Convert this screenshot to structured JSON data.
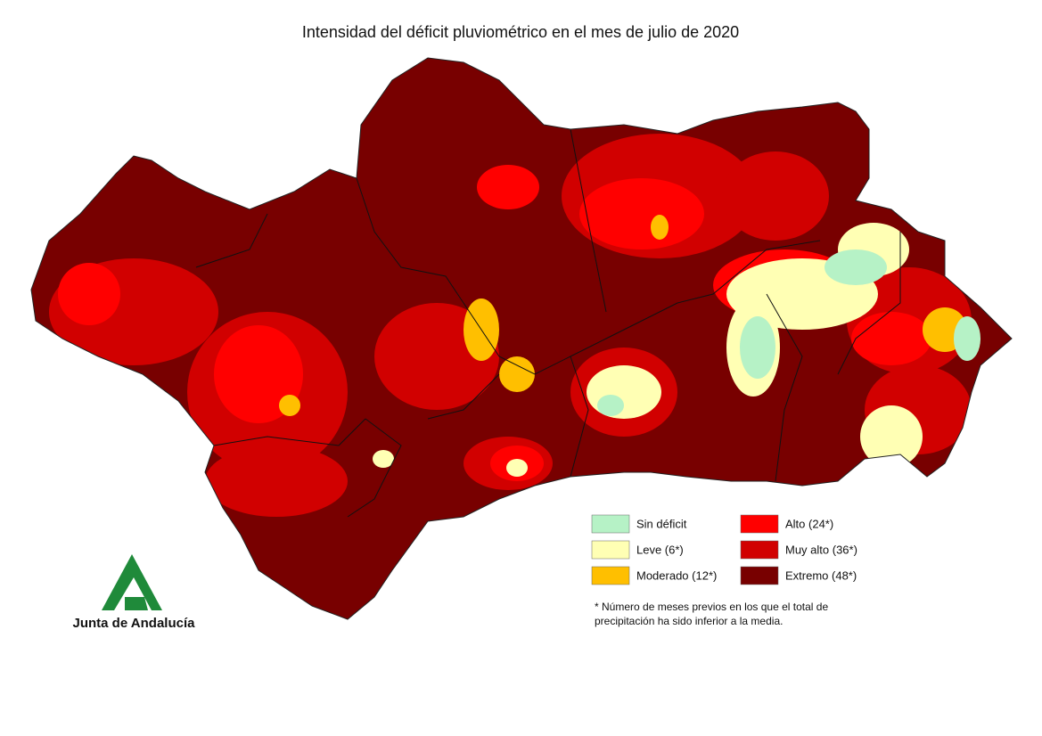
{
  "title": "Intensidad del déficit pluviométrico en el mes de julio de 2020",
  "legend": {
    "items": [
      {
        "label": "Sin déficit",
        "color": "#b6f2c6"
      },
      {
        "label": "Alto (24*)",
        "color": "#ff0000"
      },
      {
        "label": "Leve (6*)",
        "color": "#ffffb4"
      },
      {
        "label": "Muy alto (36*)",
        "color": "#d10000"
      },
      {
        "label": "Moderado (12*)",
        "color": "#ffbf00"
      },
      {
        "label": "Extremo (48*)",
        "color": "#780000"
      }
    ]
  },
  "footnote": [
    "* Número de meses previos en los que el total de",
    "precipitación ha sido inferior a la media."
  ],
  "logo": {
    "text": "Junta de Andalucía",
    "color": "#1f8a3a"
  }
}
